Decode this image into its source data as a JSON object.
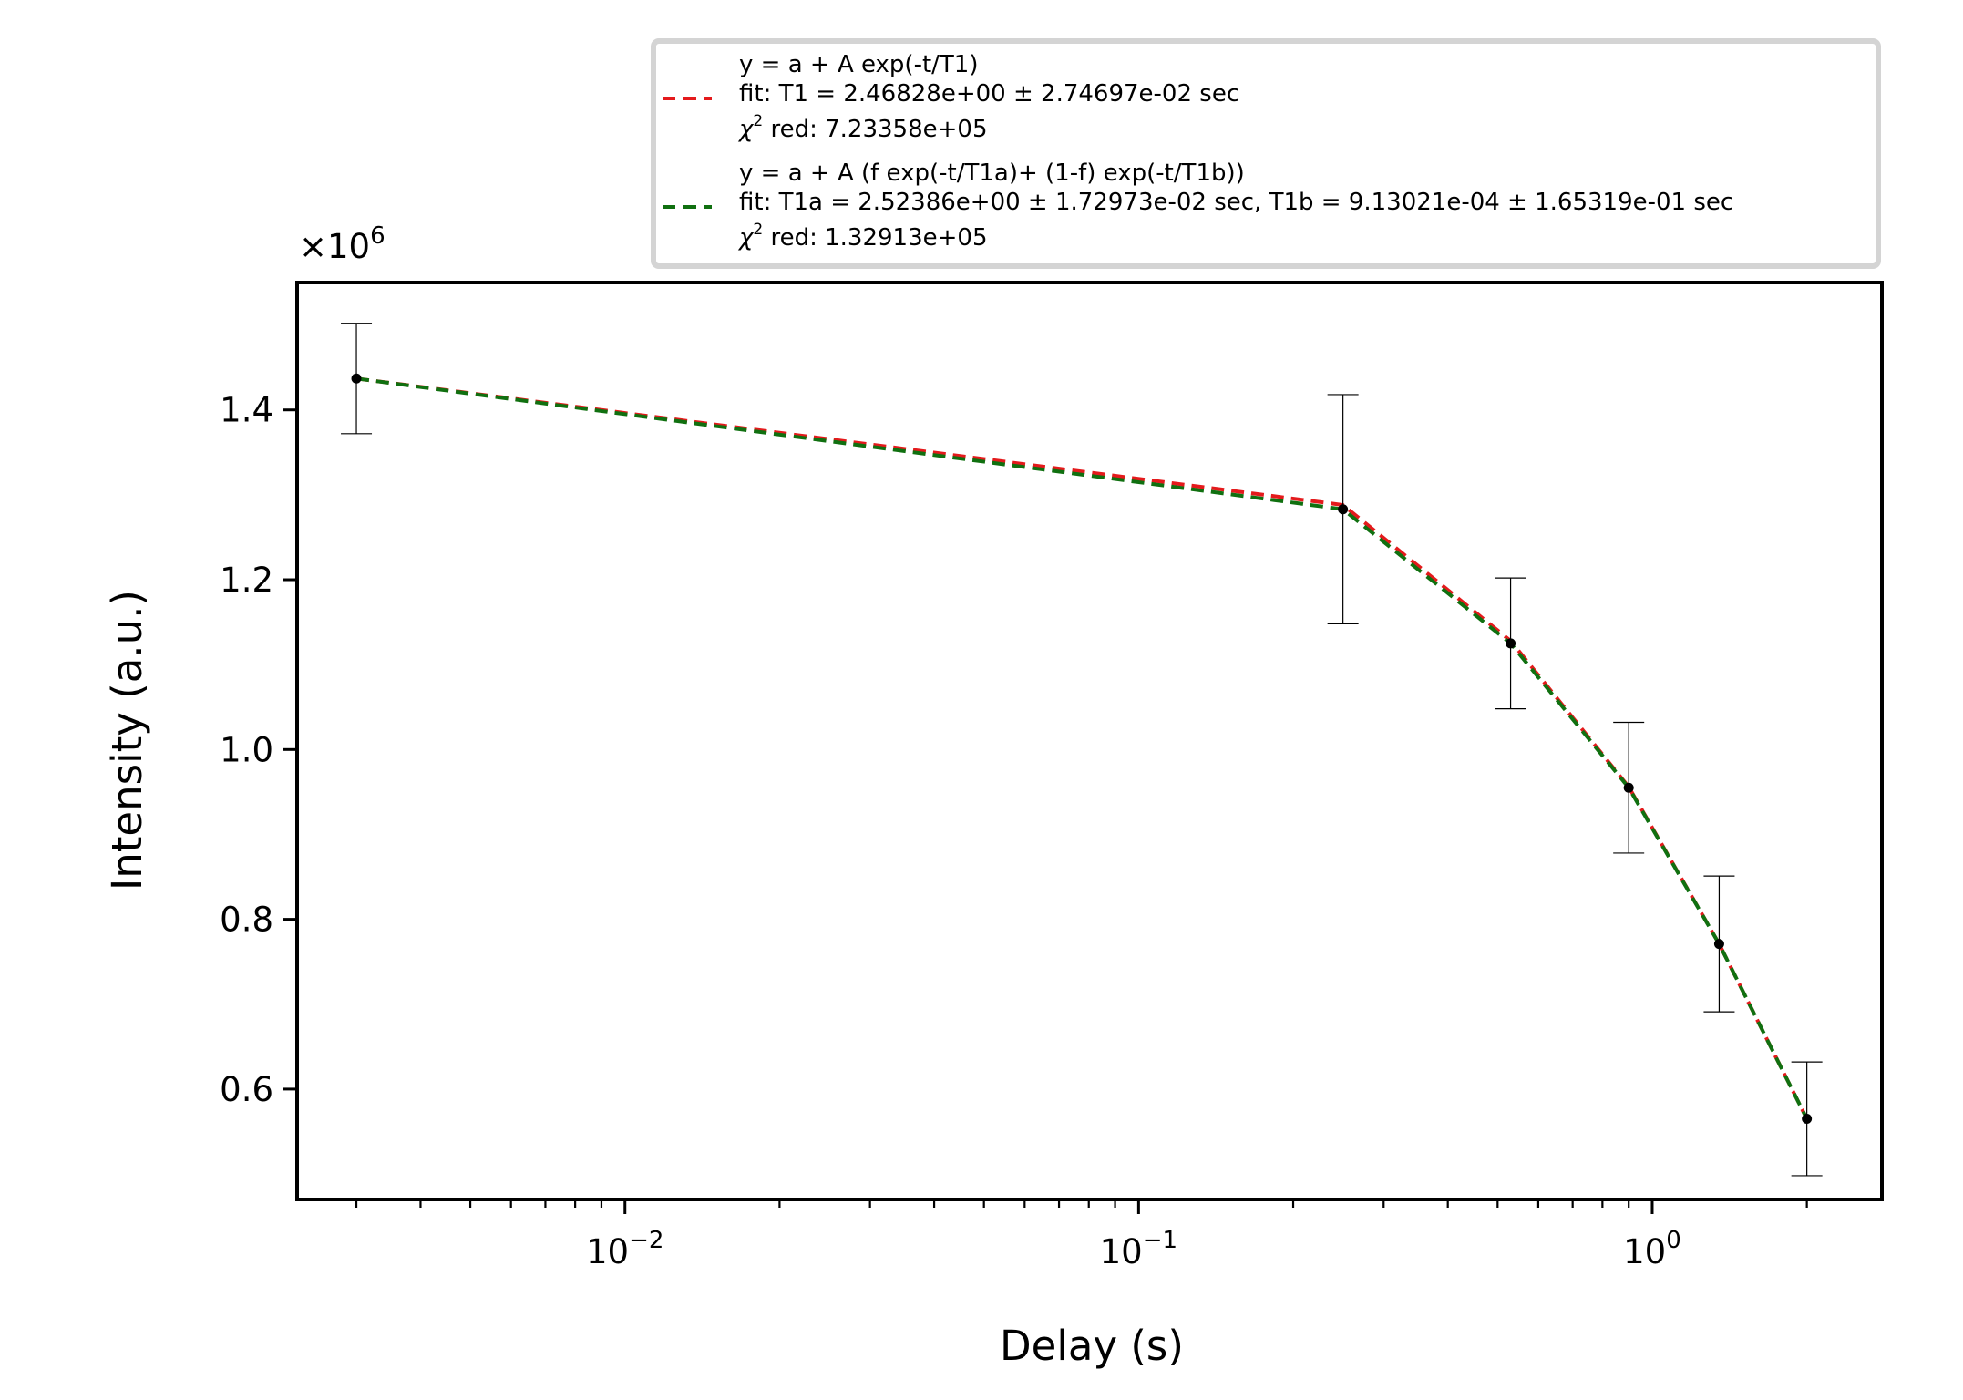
{
  "chart_data": {
    "type": "scatter",
    "xlabel": "Delay (s)",
    "ylabel": "Intensity (a.u.)",
    "xscale": "log",
    "xlim": [
      0.0023,
      2.8
    ],
    "ylim": [
      0.47,
      1.55
    ],
    "y_multiplier": "×10",
    "y_multiplier_exp": "6",
    "grid": false,
    "legend_position": "top-right, above plot",
    "xticks": [
      {
        "value": 0.01,
        "base": "10",
        "exp": "−2"
      },
      {
        "value": 0.1,
        "base": "10",
        "exp": "−1"
      },
      {
        "value": 1,
        "base": "10",
        "exp": "0"
      }
    ],
    "yticks": [
      {
        "value": 0.6,
        "label": "0.6"
      },
      {
        "value": 0.8,
        "label": "0.8"
      },
      {
        "value": 1.0,
        "label": "1.0"
      },
      {
        "value": 1.2,
        "label": "1.2"
      },
      {
        "value": 1.4,
        "label": "1.4"
      }
    ],
    "data_points": {
      "x": [
        0.003,
        0.25,
        0.53,
        0.9,
        1.35,
        2.0
      ],
      "y": [
        1.437,
        1.283,
        1.125,
        0.955,
        0.771,
        0.565
      ],
      "err_low": [
        1.372,
        1.148,
        1.048,
        0.878,
        0.691,
        0.498
      ],
      "err_high": [
        1.502,
        1.418,
        1.202,
        1.032,
        0.851,
        0.632
      ],
      "color": "#000000"
    },
    "series": [
      {
        "equation": "y = a + A exp(-t/T1)",
        "fit": "fit: T1 = 2.46828e+00 ± 2.74697e-02 sec",
        "chi_label": "χ",
        "chi_exp": "2",
        "chi_value": " red: 7.23358e+05",
        "color": "#e41a1c",
        "line_style": "dashed",
        "x": [
          0.003,
          0.25,
          0.53,
          0.9,
          1.35,
          2.0
        ],
        "y": [
          1.437,
          1.288,
          1.128,
          0.956,
          0.771,
          0.565
        ]
      },
      {
        "equation": "y = a + A (f exp(-t/T1a)+ (1-f) exp(-t/T1b))",
        "fit": "fit: T1a = 2.52386e+00 ± 1.72973e-02 sec, T1b = 9.13021e-04 ± 1.65319e-01 sec",
        "chi_label": "χ",
        "chi_exp": "2",
        "chi_value": " red: 1.32913e+05",
        "color": "#107010",
        "line_style": "dashed",
        "x": [
          0.003,
          0.25,
          0.53,
          0.9,
          1.35,
          2.0
        ],
        "y": [
          1.437,
          1.283,
          1.125,
          0.955,
          0.771,
          0.565
        ]
      }
    ]
  }
}
